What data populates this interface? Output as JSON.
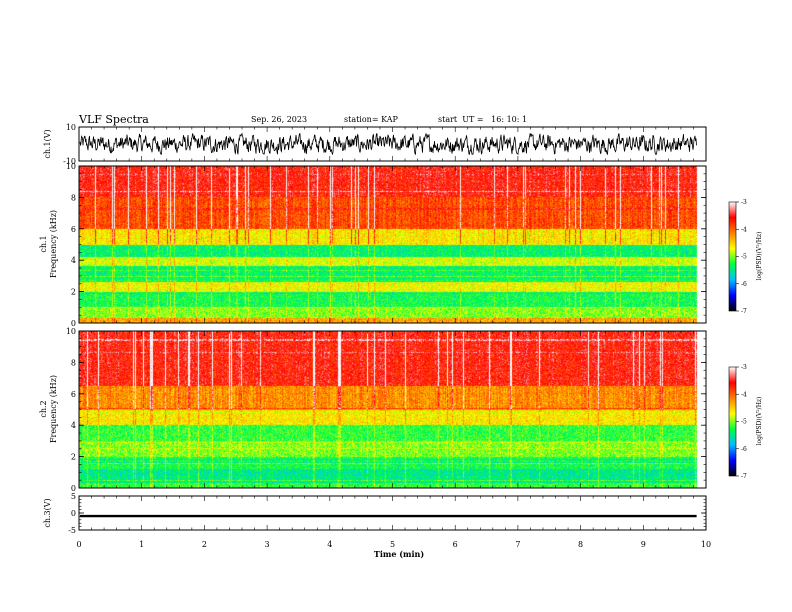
{
  "header": {
    "title": "VLF Spectra",
    "date": "Sep. 26, 2023",
    "station": "station= KAP",
    "start_ut": "start  UT =   16: 10: 1"
  },
  "chart_data": [
    {
      "type": "line",
      "name": "ch1-waveform",
      "ylabel": "ch.1(V)",
      "ylim": [
        -10,
        10
      ],
      "yticks": [
        "10",
        "-10"
      ],
      "xlim": [
        0,
        10
      ],
      "data_extent_min": 9.85,
      "baseline": 0,
      "amplitude_range": [
        -6,
        6
      ],
      "color": "#000000"
    },
    {
      "type": "heatmap",
      "name": "ch1-spectrogram",
      "ylabel": "ch.1\nFrequency (kHz)",
      "ylabel_lines": [
        "ch.1",
        "Frequency (kHz)"
      ],
      "ylim": [
        0,
        10
      ],
      "yticks": [
        "0",
        "2",
        "4",
        "6",
        "8",
        "10"
      ],
      "xlim": [
        0,
        10
      ],
      "data_extent_min": 9.85,
      "bands": [
        {
          "f": [
            0,
            0.3
          ],
          "level": -4.3
        },
        {
          "f": [
            0.3,
            1.0
          ],
          "level": -5.0
        },
        {
          "f": [
            1.0,
            2.0
          ],
          "level": -5.3
        },
        {
          "f": [
            2.0,
            2.6
          ],
          "level": -4.7
        },
        {
          "f": [
            2.6,
            3.6
          ],
          "level": -5.4
        },
        {
          "f": [
            3.6,
            4.2
          ],
          "level": -4.8
        },
        {
          "f": [
            4.2,
            5.0
          ],
          "level": -5.4
        },
        {
          "f": [
            5.0,
            6.0
          ],
          "level": -4.6
        },
        {
          "f": [
            6.0,
            8.0
          ],
          "level": -3.9
        },
        {
          "f": [
            8.0,
            10.0
          ],
          "level": -3.6
        }
      ],
      "colorbar": {
        "label": "log(PSD)(V²/Hz)",
        "range": [
          -7,
          -3
        ],
        "ticks": [
          "-3",
          "-4",
          "-5",
          "-6",
          "-7"
        ]
      }
    },
    {
      "type": "heatmap",
      "name": "ch2-spectrogram",
      "ylabel": "ch.2\nFrequency (kHz)",
      "ylabel_lines": [
        "ch.2",
        "Frequency (kHz)"
      ],
      "ylim": [
        0,
        10
      ],
      "yticks": [
        "0",
        "2",
        "4",
        "6",
        "8",
        "10"
      ],
      "xlim": [
        0,
        10
      ],
      "data_extent_min": 9.85,
      "bands": [
        {
          "f": [
            0,
            0.3
          ],
          "level": -5.2
        },
        {
          "f": [
            0.3,
            1.2
          ],
          "level": -5.5
        },
        {
          "f": [
            1.2,
            2.0
          ],
          "level": -5.3
        },
        {
          "f": [
            2.0,
            3.0
          ],
          "level": -5.0
        },
        {
          "f": [
            3.0,
            4.0
          ],
          "level": -5.2
        },
        {
          "f": [
            4.0,
            5.0
          ],
          "level": -4.6
        },
        {
          "f": [
            5.0,
            6.5
          ],
          "level": -4.2
        },
        {
          "f": [
            6.5,
            10.0
          ],
          "level": -3.6
        }
      ],
      "colorbar": {
        "label": "log(PSD)(V²/Hz)",
        "range": [
          -7,
          -3
        ],
        "ticks": [
          "-3",
          "-4",
          "-5",
          "-6",
          "-7"
        ]
      }
    },
    {
      "type": "line",
      "name": "ch3-voltage",
      "ylabel": "ch.3(V)",
      "ylim": [
        -5,
        5
      ],
      "yticks": [
        "5",
        "0",
        "-5"
      ],
      "xlim": [
        0,
        10
      ],
      "data_extent_min": 9.85,
      "value": -0.9,
      "band_halfwidth": 0.35,
      "color": "#000000"
    }
  ],
  "x_axis": {
    "label": "Time (min)",
    "ticks": [
      "0",
      "1",
      "2",
      "3",
      "4",
      "5",
      "6",
      "7",
      "8",
      "9",
      "10"
    ],
    "range": [
      0,
      10
    ]
  },
  "colors": {
    "ramp": [
      "#000000",
      "#0000ff",
      "#00bfff",
      "#00ff40",
      "#ffff00",
      "#ff8000",
      "#ff0000",
      "#ffffff"
    ]
  }
}
